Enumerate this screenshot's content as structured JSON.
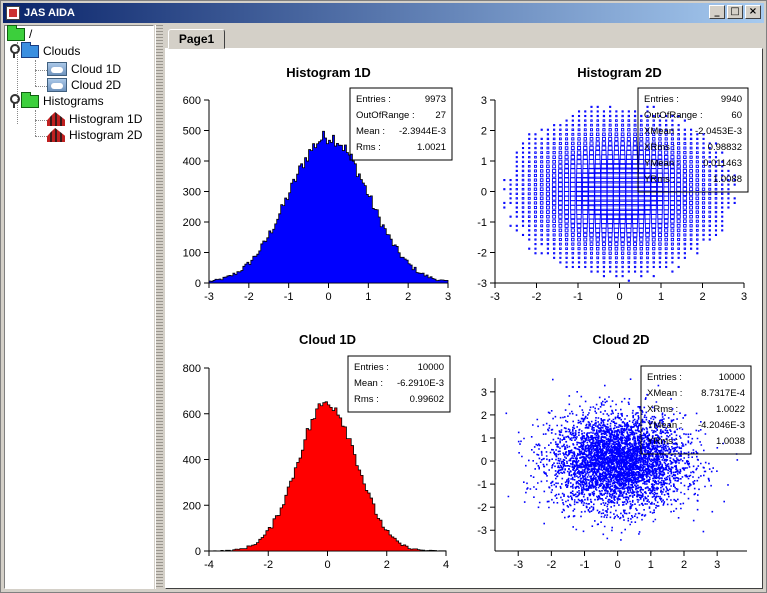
{
  "window": {
    "title": "JAS AIDA",
    "controls": [
      "_",
      "□",
      "×"
    ]
  },
  "tree": {
    "root": "/",
    "items": [
      {
        "label": "Clouds",
        "icon": "folder-icon",
        "children": [
          {
            "label": "Cloud 1D",
            "icon": "cloud-icon"
          },
          {
            "label": "Cloud 2D",
            "icon": "cloud-icon"
          }
        ]
      },
      {
        "label": "Histograms",
        "icon": "folder-icon",
        "children": [
          {
            "label": "Histogram 1D",
            "icon": "histogram-icon"
          },
          {
            "label": "Histogram 2D",
            "icon": "histogram-icon"
          }
        ]
      }
    ]
  },
  "tabs": [
    {
      "label": "Page1"
    }
  ],
  "colors": {
    "blue": "#0000ff",
    "red": "#ff0000"
  },
  "chart_data": [
    {
      "type": "bar",
      "title": "Histogram 1D",
      "fill": "#0000ff",
      "xlim": [
        -3,
        3
      ],
      "ylim": [
        0,
        600
      ],
      "xticks": [
        "-3",
        "-2",
        "-1",
        "0",
        "1",
        "2",
        "3"
      ],
      "yticks": [
        "0",
        "100",
        "200",
        "300",
        "400",
        "500",
        "600"
      ],
      "bins": 120,
      "distribution": {
        "mean": 0,
        "sigma": 1,
        "peak": 480
      },
      "stats": [
        {
          "label": "Entries :",
          "value": "9973"
        },
        {
          "label": "OutOfRange :",
          "value": "27"
        },
        {
          "label": "Mean :",
          "value": "-2.3944E-3"
        },
        {
          "label": "Rms :",
          "value": "1.0021"
        }
      ]
    },
    {
      "type": "heatmap",
      "title": "Histogram 2D",
      "color": "#0000ff",
      "xlim": [
        -3,
        3
      ],
      "ylim": [
        -3,
        3
      ],
      "xticks": [
        "-3",
        "-2",
        "-1",
        "0",
        "1",
        "2",
        "3"
      ],
      "yticks": [
        "-3",
        "-2",
        "-1",
        "0",
        "1",
        "2",
        "3"
      ],
      "bins": 40,
      "stats": [
        {
          "label": "Entries :",
          "value": "9940"
        },
        {
          "label": "OutOfRange :",
          "value": "60"
        },
        {
          "label": "XMean :",
          "value": "-2.0453E-3"
        },
        {
          "label": "XRms :",
          "value": "0.98832"
        },
        {
          "label": "YMean :",
          "value": "0.011463"
        },
        {
          "label": "YRms :",
          "value": "1.0088"
        }
      ]
    },
    {
      "type": "bar",
      "title": "Cloud 1D",
      "fill": "#ff0000",
      "xlim": [
        -4,
        4
      ],
      "ylim": [
        0,
        800
      ],
      "xticks": [
        "-4",
        "-2",
        "0",
        "2",
        "4"
      ],
      "yticks": [
        "0",
        "200",
        "400",
        "600",
        "800"
      ],
      "bins": 100,
      "distribution": {
        "mean": 0,
        "sigma": 1,
        "peak": 650
      },
      "stats": [
        {
          "label": "Entries :",
          "value": "10000"
        },
        {
          "label": "Mean :",
          "value": "-6.2910E-3"
        },
        {
          "label": "Rms :",
          "value": "0.99602"
        }
      ]
    },
    {
      "type": "scatter",
      "title": "Cloud 2D",
      "color": "#0000ff",
      "xlim": [
        -3.7,
        3.9
      ],
      "ylim": [
        -3.9,
        3.6
      ],
      "xticks": [
        "-3",
        "-2",
        "-1",
        "0",
        "1",
        "2",
        "3"
      ],
      "yticks": [
        "-3",
        "-2",
        "-1",
        "0",
        "1",
        "2",
        "3"
      ],
      "points": 10000,
      "stats": [
        {
          "label": "Entries :",
          "value": "10000"
        },
        {
          "label": "XMean :",
          "value": "8.7317E-4"
        },
        {
          "label": "XRms :",
          "value": "1.0022"
        },
        {
          "label": "YMean :",
          "value": "-4.2046E-3"
        },
        {
          "label": "YRms :",
          "value": "1.0038"
        }
      ]
    }
  ]
}
